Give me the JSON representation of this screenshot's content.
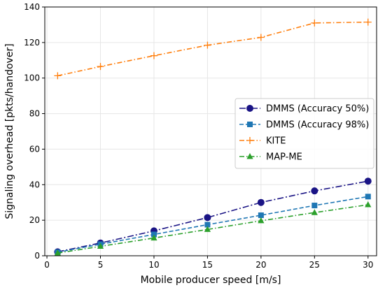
{
  "chart_data": {
    "type": "line",
    "title": "",
    "xlabel": "Mobile producer speed [m/s]",
    "ylabel": "Signaling overhead [pkts/handover]",
    "xlim": [
      -0.2,
      30.8
    ],
    "ylim": [
      0,
      140
    ],
    "xticks": [
      0,
      5,
      10,
      15,
      20,
      25,
      30
    ],
    "yticks": [
      0,
      20,
      40,
      60,
      80,
      100,
      120,
      140
    ],
    "grid": true,
    "legend_position": "center-right",
    "x": [
      1,
      5,
      10,
      15,
      20,
      25,
      30
    ],
    "series": [
      {
        "name": "DMMS (Accuracy 50%)",
        "values": [
          2.2,
          7.2,
          14.0,
          21.5,
          30.0,
          36.5,
          42.0
        ],
        "color": "#1a1485",
        "linestyle": "dashdot-long",
        "marker": "circle"
      },
      {
        "name": "DMMS (Accuracy 98%)",
        "values": [
          2.0,
          6.5,
          12.0,
          17.5,
          22.8,
          28.3,
          33.3
        ],
        "color": "#1f77b4",
        "linestyle": "dashed",
        "marker": "square"
      },
      {
        "name": "KITE",
        "values": [
          101.3,
          106.5,
          112.6,
          118.5,
          122.9,
          131.0,
          131.5
        ],
        "color": "#ff7f0e",
        "linestyle": "dashdot",
        "marker": "plus"
      },
      {
        "name": "MAP-ME",
        "values": [
          1.5,
          5.3,
          10.0,
          14.8,
          19.7,
          24.3,
          28.7
        ],
        "color": "#2ca02c",
        "linestyle": "dashdot",
        "marker": "triangle"
      }
    ]
  }
}
